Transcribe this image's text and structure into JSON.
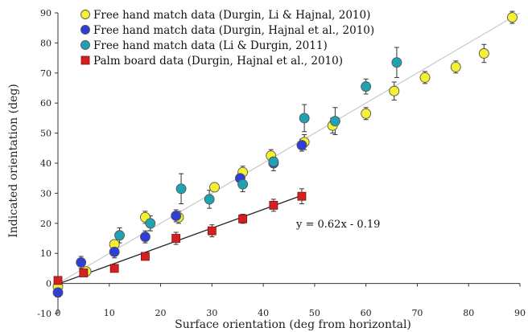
{
  "chart_data": {
    "type": "scatter",
    "xlabel": "Surface orientation (deg from horizontal)",
    "ylabel": "Indicated orientation  (deg)",
    "xlim": [
      0,
      90
    ],
    "ylim": [
      -10,
      90
    ],
    "xticks": [
      0,
      10,
      20,
      30,
      40,
      50,
      60,
      70,
      80,
      90
    ],
    "yticks": [
      -10,
      0,
      10,
      20,
      30,
      40,
      50,
      60,
      70,
      80,
      90
    ],
    "grid": false,
    "legend_position": "top-left",
    "annotation": "y = 0.62x - 0.19",
    "series": [
      {
        "name": "Free hand match data (Durgin, Li & Hajnal, 2010)",
        "marker": "circle",
        "color": "#f5f032",
        "edge": "#555555",
        "points": [
          {
            "x": 0,
            "y": -1,
            "err": 1.0
          },
          {
            "x": 5.5,
            "y": 4,
            "err": 1.2
          },
          {
            "x": 11,
            "y": 13,
            "err": 1.5
          },
          {
            "x": 17,
            "y": 22,
            "err": 2.0
          },
          {
            "x": 23.5,
            "y": 22,
            "err": 2.0
          },
          {
            "x": 30.5,
            "y": 32,
            "err": 1.5
          },
          {
            "x": 36,
            "y": 37,
            "err": 2.0
          },
          {
            "x": 41.5,
            "y": 42.5,
            "err": 2.0
          },
          {
            "x": 48,
            "y": 47,
            "err": 2.5
          },
          {
            "x": 53.5,
            "y": 52.5,
            "err": 2.5
          },
          {
            "x": 60,
            "y": 56.5,
            "err": 2.0
          },
          {
            "x": 65.5,
            "y": 64,
            "err": 3.0
          },
          {
            "x": 71.5,
            "y": 68.5,
            "err": 2.0
          },
          {
            "x": 77.5,
            "y": 72,
            "err": 2.0
          },
          {
            "x": 83,
            "y": 76.5,
            "err": 3.0
          },
          {
            "x": 88.5,
            "y": 88.5,
            "err": 2.0
          }
        ]
      },
      {
        "name": "Free hand match data (Durgin, Hajnal et al., 2010)",
        "marker": "circle",
        "color": "#2f3fd6",
        "edge": "#555555",
        "points": [
          {
            "x": 0,
            "y": -3,
            "err": 1.5
          },
          {
            "x": 4.5,
            "y": 7,
            "err": 2.0
          },
          {
            "x": 11,
            "y": 10.5,
            "err": 2.0
          },
          {
            "x": 17,
            "y": 15.5,
            "err": 2.0
          },
          {
            "x": 23,
            "y": 22.5,
            "err": 2.0
          },
          {
            "x": 35.5,
            "y": 35,
            "err": 2.0
          },
          {
            "x": 42,
            "y": 40,
            "err": 2.5
          },
          {
            "x": 47.5,
            "y": 46,
            "err": 2.0
          }
        ]
      },
      {
        "name": "Free hand match data (Li & Durgin, 2011)",
        "marker": "circle",
        "color": "#1fa3b3",
        "edge": "#555555",
        "points": [
          {
            "x": 12,
            "y": 16,
            "err": 2.5
          },
          {
            "x": 18,
            "y": 20,
            "err": 2.5
          },
          {
            "x": 24,
            "y": 31.5,
            "err": 5.0
          },
          {
            "x": 29.5,
            "y": 28,
            "err": 3.0
          },
          {
            "x": 36,
            "y": 33,
            "err": 2.5
          },
          {
            "x": 42,
            "y": 40.5,
            "err": 2.0
          },
          {
            "x": 48,
            "y": 55,
            "err": 4.5
          },
          {
            "x": 54,
            "y": 54,
            "err": 4.5
          },
          {
            "x": 60,
            "y": 65.5,
            "err": 2.5
          },
          {
            "x": 66,
            "y": 73.5,
            "err": 5.0
          }
        ]
      },
      {
        "name": "Palm board data (Durgin, Hajnal et al., 2010)",
        "marker": "square",
        "color": "#d42020",
        "edge": "#7a1010",
        "points": [
          {
            "x": 0,
            "y": 1,
            "err": 1.0
          },
          {
            "x": 5,
            "y": 3.5,
            "err": 1.0
          },
          {
            "x": 11,
            "y": 5,
            "err": 1.0
          },
          {
            "x": 17,
            "y": 9,
            "err": 1.0
          },
          {
            "x": 23,
            "y": 15,
            "err": 2.0
          },
          {
            "x": 30,
            "y": 17.5,
            "err": 2.0
          },
          {
            "x": 36,
            "y": 21.5,
            "err": 1.5
          },
          {
            "x": 42,
            "y": 26,
            "err": 2.0
          },
          {
            "x": 47.5,
            "y": 29,
            "err": 2.5
          }
        ]
      }
    ],
    "lines": [
      {
        "name": "identity",
        "from": [
          0,
          0
        ],
        "to": [
          90,
          90
        ],
        "color": "#c8c8c8"
      },
      {
        "name": "fit",
        "slope": 0.62,
        "intercept": -0.19,
        "xrange": [
          0,
          48
        ],
        "color": "#222222"
      }
    ]
  }
}
